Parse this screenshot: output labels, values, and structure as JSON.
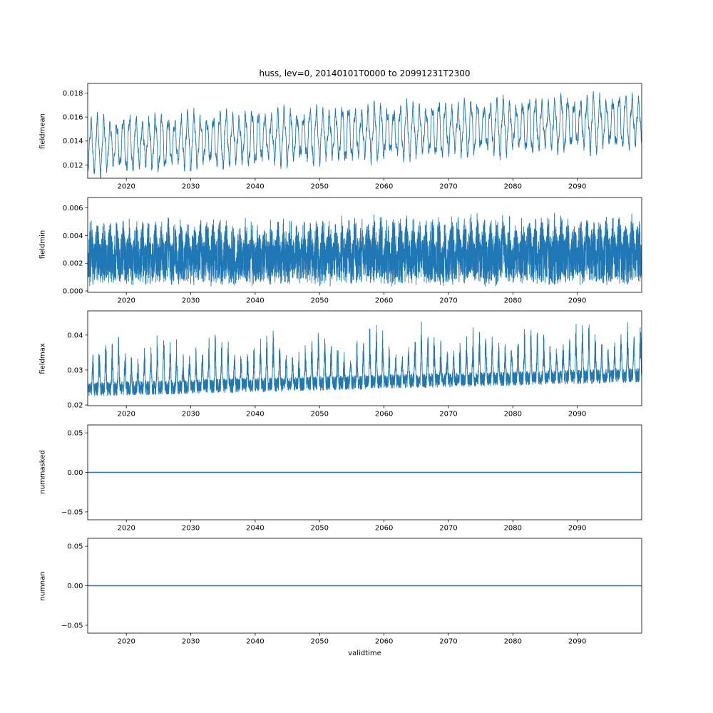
{
  "title": "huss, lev=0, 20140101T0000 to 20991231T2300",
  "xlabel": "validtime",
  "line_color": "#1f77b4",
  "x_axis": {
    "min": 2014,
    "max": 2100,
    "tick_values": [
      2020,
      2030,
      2040,
      2050,
      2060,
      2070,
      2080,
      2090
    ],
    "tick_labels": [
      "2020",
      "2030",
      "2040",
      "2050",
      "2060",
      "2070",
      "2080",
      "2090"
    ]
  },
  "chart_data": [
    {
      "type": "line",
      "name": "fieldmean",
      "ylabel": "fieldmean",
      "ylim": [
        0.0109,
        0.0188
      ],
      "ytick_values": [
        0.012,
        0.014,
        0.016,
        0.018
      ],
      "ytick_labels": [
        "0.012",
        "0.014",
        "0.016",
        "0.018"
      ],
      "description": "annual oscillation, mean rising ~0.0136 to ~0.0157, amplitude ~0.002",
      "signal": {
        "kind": "seasonal",
        "base_start": 0.0136,
        "base_end": 0.0157,
        "amp": 0.0018,
        "amp_jitter": 0.0003,
        "noise": 0.0003,
        "points_per_year": 50,
        "seed": 1
      }
    },
    {
      "type": "line",
      "name": "fieldmin",
      "ylabel": "fieldmin",
      "ylim": [
        -0.0001,
        0.00675
      ],
      "ytick_values": [
        0.0,
        0.002,
        0.004,
        0.006
      ],
      "ytick_labels": [
        "0.000",
        "0.002",
        "0.004",
        "0.006"
      ],
      "description": "dense band ~0.0006 to ~0.005 with seasonal peaks, max ~0.006 near 2084",
      "signal": {
        "kind": "band",
        "floor": 0.0006,
        "top_start": 0.0042,
        "top_end": 0.0046,
        "top_seasonal": 0.0009,
        "noise": 0.0003,
        "points_per_year": 70,
        "seed": 2
      }
    },
    {
      "type": "line",
      "name": "fieldmax",
      "ylabel": "fieldmax",
      "ylim": [
        0.0198,
        0.0469
      ],
      "ytick_values": [
        0.02,
        0.03,
        0.04
      ],
      "ytick_labels": [
        "0.02",
        "0.03",
        "0.04"
      ],
      "description": "dense band ~0.022-0.030 rising, annual spikes up to ~0.040 early, ~0.046 late",
      "signal": {
        "kind": "spiky",
        "base_start": 0.0245,
        "base_end": 0.0285,
        "band": 0.002,
        "spike": 0.0125,
        "spike_jitter": 0.0035,
        "points_per_year": 70,
        "seed": 3
      }
    },
    {
      "type": "line",
      "name": "nummasked",
      "ylabel": "nummasked",
      "ylim": [
        -0.06,
        0.06
      ],
      "ytick_values": [
        0.05,
        0.0,
        -0.05
      ],
      "ytick_labels": [
        "0.05",
        "0.00",
        "−0.05"
      ],
      "description": "constant zero line",
      "signal": {
        "kind": "constant",
        "value": 0
      }
    },
    {
      "type": "line",
      "name": "numnan",
      "ylabel": "numnan",
      "ylim": [
        -0.06,
        0.06
      ],
      "ytick_values": [
        0.05,
        0.0,
        -0.05
      ],
      "ytick_labels": [
        "0.05",
        "0.00",
        "−0.05"
      ],
      "description": "constant zero line",
      "signal": {
        "kind": "constant",
        "value": 0
      }
    }
  ]
}
